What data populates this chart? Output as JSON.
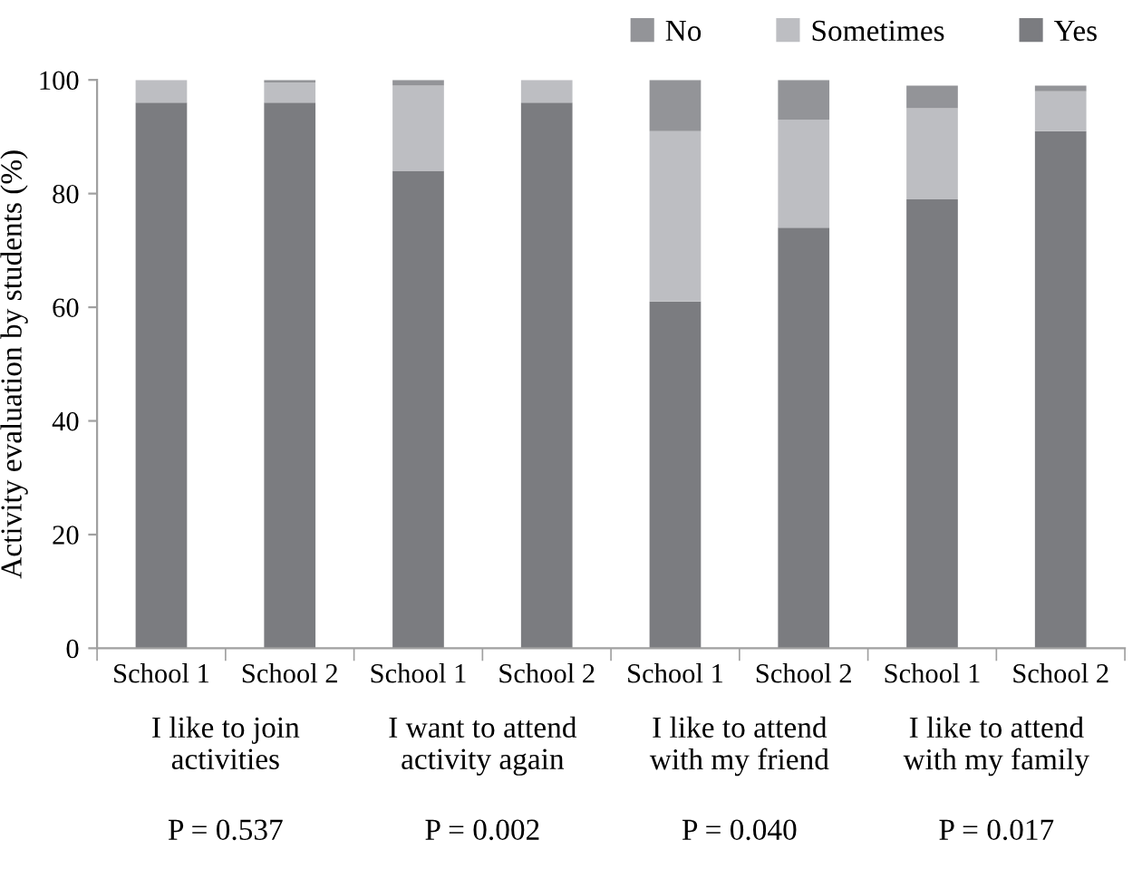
{
  "chart_data": {
    "type": "bar",
    "stacked": true,
    "ylabel": "Activity evaluation by students (%)",
    "categories": [
      "School 1",
      "School 2",
      "School 1",
      "School 2",
      "School 1",
      "School 2",
      "School 1",
      "School 2"
    ],
    "series": [
      {
        "name": "Yes",
        "color": "#7b7c80",
        "values": [
          96,
          96,
          84,
          96,
          61,
          74,
          79,
          91
        ]
      },
      {
        "name": "Sometimes",
        "color": "#bdbec2",
        "values": [
          4,
          3.5,
          15,
          4,
          30,
          19,
          16,
          7
        ]
      },
      {
        "name": "No",
        "color": "#939498",
        "values": [
          0,
          0.5,
          1,
          0,
          9,
          7,
          4,
          1
        ]
      }
    ],
    "ylim": [
      0,
      100
    ],
    "yticks": [
      0,
      20,
      40,
      60,
      80,
      100
    ],
    "grid": false,
    "legend": "top right",
    "annotations": [
      "I like to join\nactivities",
      "I want to attend\nactivity again",
      "I like to attend\nwith my friend",
      "I like to attend\nwith my family",
      "P = 0.537",
      "P = 0.002",
      "P = 0.040",
      "P = 0.017"
    ]
  }
}
